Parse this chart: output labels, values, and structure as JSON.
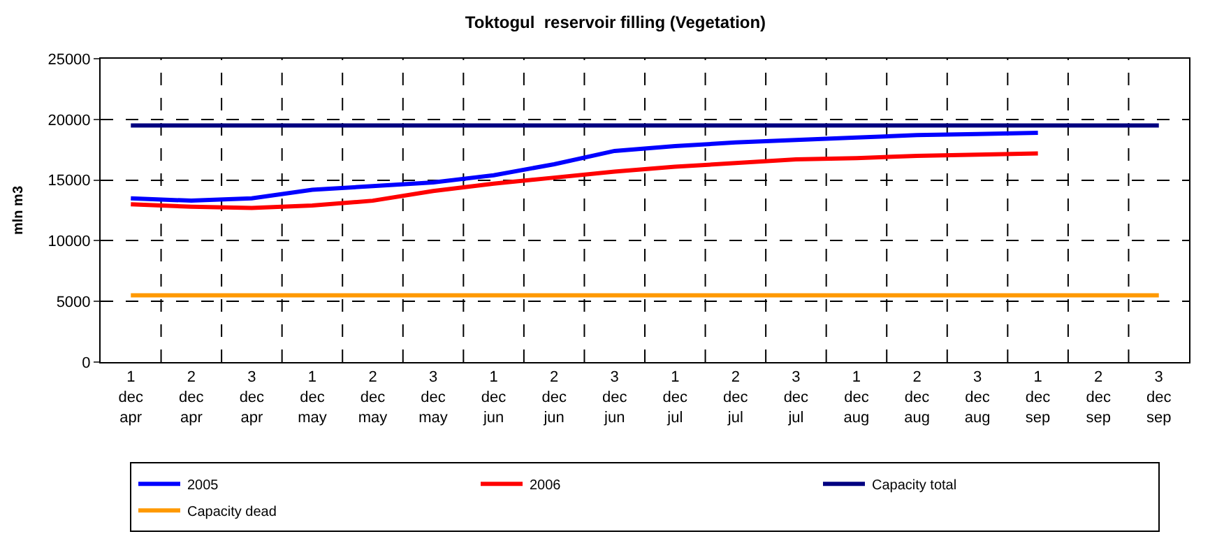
{
  "chart_data": {
    "type": "line",
    "title": "Toktogul  reservoir filling (Vegetation)",
    "ylabel": "mln m3",
    "categories": [
      "1 dec apr",
      "2 dec apr",
      "3 dec apr",
      "1 dec may",
      "2 dec may",
      "3 dec may",
      "1 dec jun",
      "2 dec jun",
      "3 dec jun",
      "1 dec jul",
      "2 dec jul",
      "3 dec jul",
      "1 dec aug",
      "2 dec aug",
      "3 dec aug",
      "1 dec sep",
      "2 dec sep",
      "3 dec sep"
    ],
    "series": [
      {
        "name": "2005",
        "color": "#0000ff",
        "values": [
          13500,
          13300,
          13500,
          14200,
          14500,
          14800,
          15400,
          16300,
          17400,
          17800,
          18100,
          18300,
          18500,
          18700,
          18800,
          18900,
          null,
          null
        ]
      },
      {
        "name": "2006",
        "color": "#ff0000",
        "values": [
          13000,
          12800,
          12700,
          12900,
          13300,
          14100,
          14700,
          15200,
          15700,
          16100,
          16400,
          16700,
          16800,
          17000,
          17100,
          17200,
          null,
          null
        ]
      },
      {
        "name": "Capacity total",
        "color": "#000080",
        "values": [
          19500,
          19500,
          19500,
          19500,
          19500,
          19500,
          19500,
          19500,
          19500,
          19500,
          19500,
          19500,
          19500,
          19500,
          19500,
          19500,
          19500,
          19500
        ]
      },
      {
        "name": "Capacity dead",
        "color": "#ff9900",
        "values": [
          5500,
          5500,
          5500,
          5500,
          5500,
          5500,
          5500,
          5500,
          5500,
          5500,
          5500,
          5500,
          5500,
          5500,
          5500,
          5500,
          5500,
          5500
        ]
      }
    ],
    "ylim": [
      0,
      25000
    ],
    "yticks": [
      0,
      5000,
      10000,
      15000,
      20000,
      25000
    ],
    "grid": true,
    "legend": "bottom",
    "marker": "none",
    "line_style": "solid"
  }
}
